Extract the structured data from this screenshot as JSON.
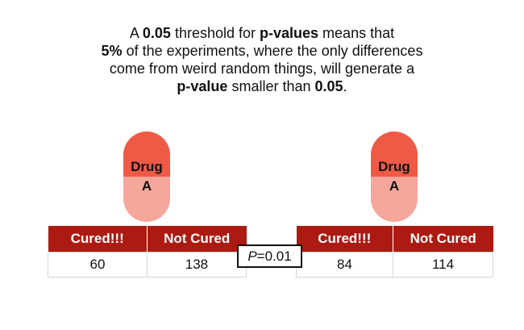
{
  "caption": {
    "parts": [
      {
        "text": "A ",
        "bold": false
      },
      {
        "text": "0.05",
        "bold": true
      },
      {
        "text": " threshold for ",
        "bold": false
      },
      {
        "text": "p-values",
        "bold": true
      },
      {
        "text": " means that ",
        "bold": false
      },
      {
        "text": "5%",
        "bold": true
      },
      {
        "text": " of the experiments, where the only differences come from weird random things, will generate a ",
        "bold": false
      },
      {
        "text": "p-value",
        "bold": true
      },
      {
        "text": " smaller than ",
        "bold": false
      },
      {
        "text": "0.05",
        "bold": true
      },
      {
        "text": ".",
        "bold": false
      }
    ]
  },
  "left": {
    "pill": {
      "line1": "Drug",
      "line2": "A"
    },
    "table": {
      "headers": [
        "Cured!!!",
        "Not Cured"
      ],
      "values": [
        "60",
        "138"
      ]
    }
  },
  "right": {
    "pill": {
      "line1": "Drug",
      "line2": "A"
    },
    "table": {
      "headers": [
        "Cured!!!",
        "Not Cured"
      ],
      "values": [
        "84",
        "114"
      ]
    }
  },
  "pvalue": {
    "symbol": "P",
    "text": "=0.01"
  },
  "colors": {
    "header_red": "#ad1a12",
    "pill_dark": "#ef5a47",
    "pill_light": "#f5a79b"
  }
}
